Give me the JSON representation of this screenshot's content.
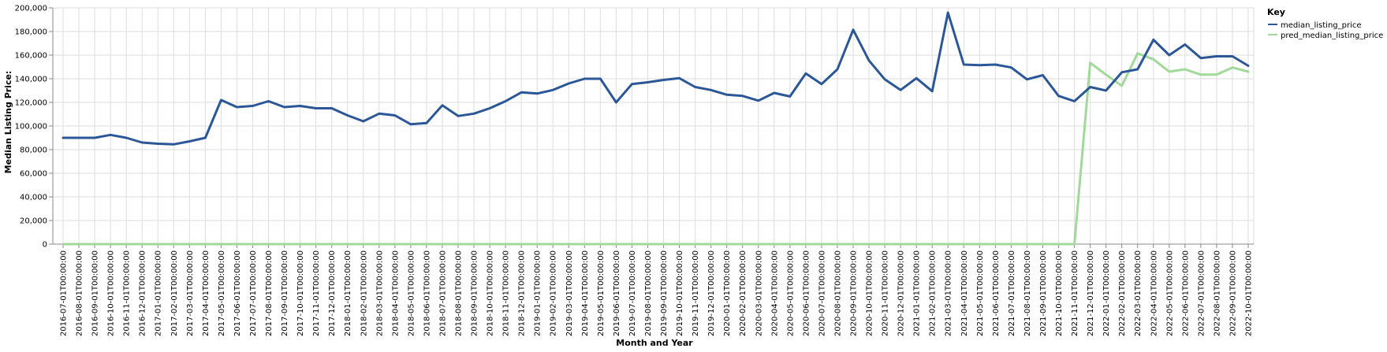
{
  "chart_data": {
    "type": "line",
    "xlabel": "Month and Year",
    "ylabel": "Median Listing Price:",
    "ylim": [
      0,
      200000
    ],
    "y_ticks": [
      "0",
      "20,000",
      "40,000",
      "60,000",
      "80,000",
      "100,000",
      "120,000",
      "140,000",
      "160,000",
      "180,000",
      "200,000"
    ],
    "grid": true,
    "legend": {
      "title": "Key",
      "placement": "top-right"
    },
    "colors": {
      "median_listing_price": "#2b5797",
      "pred_median_listing_price": "#a1d99b",
      "grid": "#dddddd",
      "axis": "#888888"
    },
    "x": [
      "2016-07-01T00:00:00",
      "2016-08-01T00:00:00",
      "2016-09-01T00:00:00",
      "2016-10-01T00:00:00",
      "2016-11-01T00:00:00",
      "2016-12-01T00:00:00",
      "2017-01-01T00:00:00",
      "2017-02-01T00:00:00",
      "2017-03-01T00:00:00",
      "2017-04-01T00:00:00",
      "2017-05-01T00:00:00",
      "2017-06-01T00:00:00",
      "2017-07-01T00:00:00",
      "2017-08-01T00:00:00",
      "2017-09-01T00:00:00",
      "2017-10-01T00:00:00",
      "2017-11-01T00:00:00",
      "2017-12-01T00:00:00",
      "2018-01-01T00:00:00",
      "2018-02-01T00:00:00",
      "2018-03-01T00:00:00",
      "2018-04-01T00:00:00",
      "2018-05-01T00:00:00",
      "2018-06-01T00:00:00",
      "2018-07-01T00:00:00",
      "2018-08-01T00:00:00",
      "2018-09-01T00:00:00",
      "2018-10-01T00:00:00",
      "2018-11-01T00:00:00",
      "2018-12-01T00:00:00",
      "2019-01-01T00:00:00",
      "2019-02-01T00:00:00",
      "2019-03-01T00:00:00",
      "2019-04-01T00:00:00",
      "2019-05-01T00:00:00",
      "2019-06-01T00:00:00",
      "2019-07-01T00:00:00",
      "2019-08-01T00:00:00",
      "2019-09-01T00:00:00",
      "2019-10-01T00:00:00",
      "2019-11-01T00:00:00",
      "2019-12-01T00:00:00",
      "2020-01-01T00:00:00",
      "2020-02-01T00:00:00",
      "2020-03-01T00:00:00",
      "2020-04-01T00:00:00",
      "2020-05-01T00:00:00",
      "2020-06-01T00:00:00",
      "2020-07-01T00:00:00",
      "2020-08-01T00:00:00",
      "2020-09-01T00:00:00",
      "2020-10-01T00:00:00",
      "2020-11-01T00:00:00",
      "2020-12-01T00:00:00",
      "2021-01-01T00:00:00",
      "2021-02-01T00:00:00",
      "2021-03-01T00:00:00",
      "2021-04-01T00:00:00",
      "2021-05-01T00:00:00",
      "2021-06-01T00:00:00",
      "2021-07-01T00:00:00",
      "2021-08-01T00:00:00",
      "2021-09-01T00:00:00",
      "2021-10-01T00:00:00",
      "2021-11-01T00:00:00",
      "2021-12-01T00:00:00",
      "2022-01-01T00:00:00",
      "2022-02-01T00:00:00",
      "2022-03-01T00:00:00",
      "2022-04-01T00:00:00",
      "2022-05-01T00:00:00",
      "2022-06-01T00:00:00",
      "2022-07-01T00:00:00",
      "2022-08-01T00:00:00",
      "2022-09-01T00:00:00",
      "2022-10-01T00:00:00"
    ],
    "series": [
      {
        "name": "median_listing_price",
        "values": [
          90000,
          90000,
          90000,
          92500,
          90000,
          86000,
          85000,
          84500,
          87000,
          90000,
          122000,
          116000,
          117000,
          121000,
          116000,
          117000,
          115000,
          115000,
          109000,
          104000,
          110500,
          109000,
          101500,
          102500,
          117500,
          108500,
          110500,
          115000,
          121000,
          128500,
          127500,
          130500,
          136000,
          140000,
          140000,
          120000,
          135500,
          137000,
          139000,
          140500,
          133000,
          130500,
          126500,
          125500,
          121500,
          128000,
          125000,
          144500,
          135500,
          148000,
          181500,
          155500,
          139500,
          130500,
          140500,
          129500,
          196000,
          152000,
          151500,
          152000,
          149500,
          139500,
          143000,
          125500,
          121000,
          133000,
          130000,
          145500,
          148000,
          173000,
          160000,
          169000,
          157500,
          159000,
          159000,
          151000
        ]
      },
      {
        "name": "pred_median_listing_price",
        "values": [
          0,
          0,
          0,
          0,
          0,
          0,
          0,
          0,
          0,
          0,
          0,
          0,
          0,
          0,
          0,
          0,
          0,
          0,
          0,
          0,
          0,
          0,
          0,
          0,
          0,
          0,
          0,
          0,
          0,
          0,
          0,
          0,
          0,
          0,
          0,
          0,
          0,
          0,
          0,
          0,
          0,
          0,
          0,
          0,
          0,
          0,
          0,
          0,
          0,
          0,
          0,
          0,
          0,
          0,
          0,
          0,
          0,
          0,
          0,
          0,
          0,
          0,
          0,
          0,
          0,
          153500,
          143500,
          134000,
          161500,
          156500,
          146000,
          148000,
          143500,
          143500,
          149500,
          146000
        ]
      }
    ]
  }
}
